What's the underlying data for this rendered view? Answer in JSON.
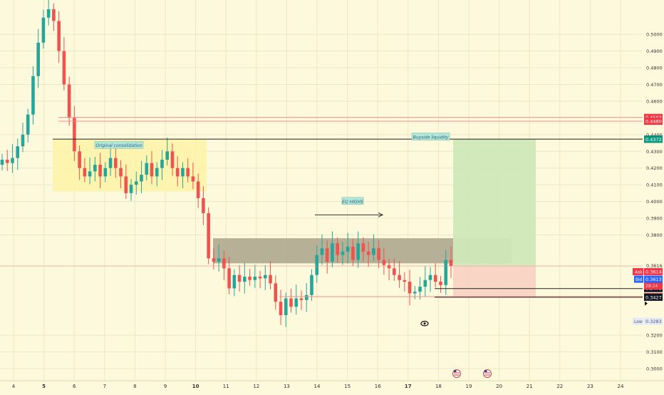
{
  "colors": {
    "background": "#fdf9dc",
    "up": "#26a69a",
    "down": "#ef5350",
    "grid": "#ece7c4",
    "consolidation_box": "#fdf3a8",
    "range_box": "#a9a38a",
    "profit_zone": "#cfe8b8",
    "loss_zone": "#f8d3c2",
    "red_level": "#f28b8b",
    "black_level": "#222222",
    "tag_red": "#f23645",
    "tag_black": "#131722",
    "tag_green": "#089981",
    "tag_blue": "#2962ff",
    "note_bg": "#b8e6d6",
    "note_text": "#1b6a8f"
  },
  "chart_data": {
    "type": "candlestick",
    "x_ticks": [
      "4",
      "5",
      "6",
      "7",
      "8",
      "9",
      "10",
      "11",
      "12",
      "13",
      "14",
      "15",
      "16",
      "17",
      "18",
      "19",
      "20",
      "21",
      "22",
      "23",
      "24"
    ],
    "x_ticks_bold": [
      "5",
      "10",
      "17"
    ],
    "y_ticks": [
      "0.5000",
      "0.4900",
      "0.4800",
      "0.4700",
      "0.4600",
      "0.4400",
      "0.4300",
      "0.4200",
      "0.4100",
      "0.4000",
      "0.3900",
      "0.3800",
      "0.3616",
      "0.3200",
      "0.3100",
      "0.3000"
    ],
    "ylim": [
      0.298,
      0.517
    ],
    "closes": [
      0.425,
      0.423,
      0.426,
      0.433,
      0.44,
      0.452,
      0.475,
      0.495,
      0.51,
      0.515,
      0.508,
      0.49,
      0.47,
      0.45,
      0.43,
      0.42,
      0.415,
      0.418,
      0.422,
      0.415,
      0.42,
      0.426,
      0.42,
      0.415,
      0.405,
      0.41,
      0.412,
      0.416,
      0.423,
      0.415,
      0.42,
      0.425,
      0.43,
      0.42,
      0.415,
      0.42,
      0.415,
      0.412,
      0.402,
      0.393,
      0.366,
      0.364,
      0.366,
      0.36,
      0.348,
      0.356,
      0.352,
      0.355,
      0.353,
      0.355,
      0.354,
      0.356,
      0.351,
      0.34,
      0.332,
      0.342,
      0.337,
      0.342,
      0.341,
      0.344,
      0.356,
      0.368,
      0.372,
      0.364,
      0.375,
      0.368,
      0.37,
      0.373,
      0.365,
      0.375,
      0.37,
      0.368,
      0.372,
      0.365,
      0.362,
      0.36,
      0.356,
      0.353,
      0.352,
      0.345,
      0.346,
      0.349,
      0.353,
      0.356,
      0.352,
      0.35,
      0.365,
      0.3614
    ],
    "levels": [
      {
        "label": "0.4503",
        "value": 0.4503,
        "style": "red"
      },
      {
        "label": "0.4480",
        "value": 0.448,
        "style": "red"
      },
      {
        "label": "0.4373",
        "value": 0.4373,
        "style": "black"
      },
      {
        "label": "0.4372",
        "value": 0.4372,
        "style": "green"
      },
      {
        "label": "0.3479",
        "value": 0.3479,
        "style": "black"
      },
      {
        "label": "0.3431",
        "value": 0.3431,
        "style": "red"
      },
      {
        "label": "0.3427",
        "value": 0.3427,
        "style": "black"
      }
    ],
    "zones": [
      {
        "name": "consolidation",
        "price_top": 0.4373,
        "price_bottom": 0.406
      },
      {
        "name": "range",
        "price_top": 0.378,
        "price_bottom": 0.363
      },
      {
        "name": "profit",
        "price_top": 0.4372,
        "price_bottom": 0.3614
      },
      {
        "name": "loss",
        "price_top": 0.3614,
        "price_bottom": 0.3431
      }
    ],
    "annotations": [
      "Original consolidation",
      "EQ HIGHS",
      "Buyside liquidity"
    ],
    "price_box": {
      "ask_label": "Ask",
      "ask_value": "0.3614",
      "last_value": "0.3614",
      "countdown": "28:24",
      "bid_label": "Bid",
      "bid_value": "0.3613",
      "low_label": "Low",
      "low_value": "0.3283"
    }
  }
}
